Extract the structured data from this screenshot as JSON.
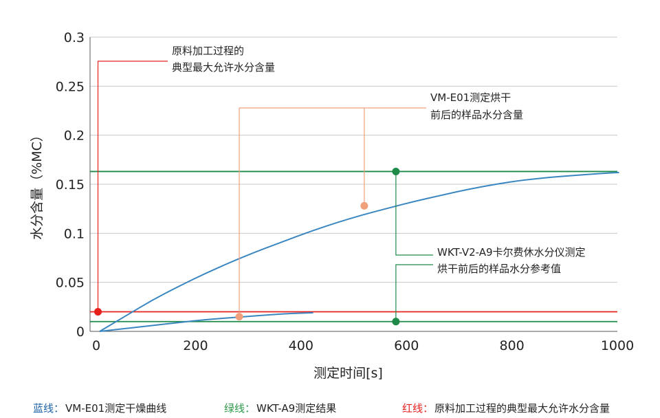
{
  "chart_data": {
    "type": "line",
    "xlabel": "测定时间[s]",
    "ylabel": "水分含量（%MC）",
    "xlim": [
      0,
      1000
    ],
    "ylim": [
      0,
      0.3
    ],
    "x_ticks": [
      "0",
      "200",
      "400",
      "600",
      "800",
      "1000"
    ],
    "y_ticks": [
      "0",
      "0.05",
      "0.1",
      "0.15",
      "0.2",
      "0.25",
      "0.3"
    ],
    "grid": true,
    "series": [
      {
        "name": "VM-E01测定干燥曲线",
        "color": "#3a86c0",
        "x": [
          0,
          50,
          100,
          150,
          200,
          250,
          300,
          350,
          400,
          450,
          500,
          550,
          600,
          650,
          700,
          750,
          800,
          850,
          900,
          950,
          985
        ],
        "y": [
          0.0,
          0.016,
          0.032,
          0.046,
          0.059,
          0.071,
          0.082,
          0.092,
          0.102,
          0.111,
          0.119,
          0.126,
          0.133,
          0.139,
          0.145,
          0.15,
          0.154,
          0.157,
          0.159,
          0.161,
          0.162
        ]
      },
      {
        "name": "",
        "color": "#3a86c0",
        "x": [
          0,
          50,
          100,
          150,
          200,
          250,
          300,
          350,
          405
        ],
        "y": [
          0.0,
          0.003,
          0.006,
          0.009,
          0.012,
          0.014,
          0.016,
          0.018,
          0.019
        ]
      }
    ],
    "hlines": [
      {
        "name": "WKT-A9测定结果",
        "y": 0.163,
        "color": "#1e8a4a"
      },
      {
        "name": "WKT-A9测定结果",
        "y": 0.01,
        "color": "#1e8a4a"
      },
      {
        "name": "原料加工过程的典型最大允许水分含量",
        "y": 0.02,
        "color": "#e8201c"
      }
    ],
    "markers": [
      {
        "x": 15,
        "y": 0.02,
        "color": "#e8201c"
      },
      {
        "x": 283,
        "y": 0.015,
        "color": "#f0a07a"
      },
      {
        "x": 520,
        "y": 0.128,
        "color": "#f0a07a"
      },
      {
        "x": 580,
        "y": 0.163,
        "color": "#1e8a4a"
      },
      {
        "x": 580,
        "y": 0.01,
        "color": "#1e8a4a"
      }
    ],
    "annotations": [
      {
        "id": "red",
        "lines": [
          "原料加工过程的",
          "典型最大允许水分含量"
        ],
        "color": "#e8201c"
      },
      {
        "id": "orange",
        "lines": [
          "VM-E01测定烘干",
          "前后的样品水分含量"
        ],
        "color": "#f0a07a"
      },
      {
        "id": "green",
        "lines": [
          "WKT-V2-A9卡尔费休水分仪测定",
          "烘干前后的样品水分参考值"
        ],
        "color": "#1e8a4a"
      }
    ]
  },
  "legend": {
    "blue": {
      "key": "蓝线：",
      "text": "VM-E01测定干燥曲线",
      "color": "#1a62a8"
    },
    "green": {
      "key": "绿线：",
      "text": "WKT-A9测定结果",
      "color": "#2e9a4a"
    },
    "red": {
      "key": "红线：",
      "text": "原料加工过程的典型最大允许水分含量",
      "color": "#e8201c"
    }
  }
}
